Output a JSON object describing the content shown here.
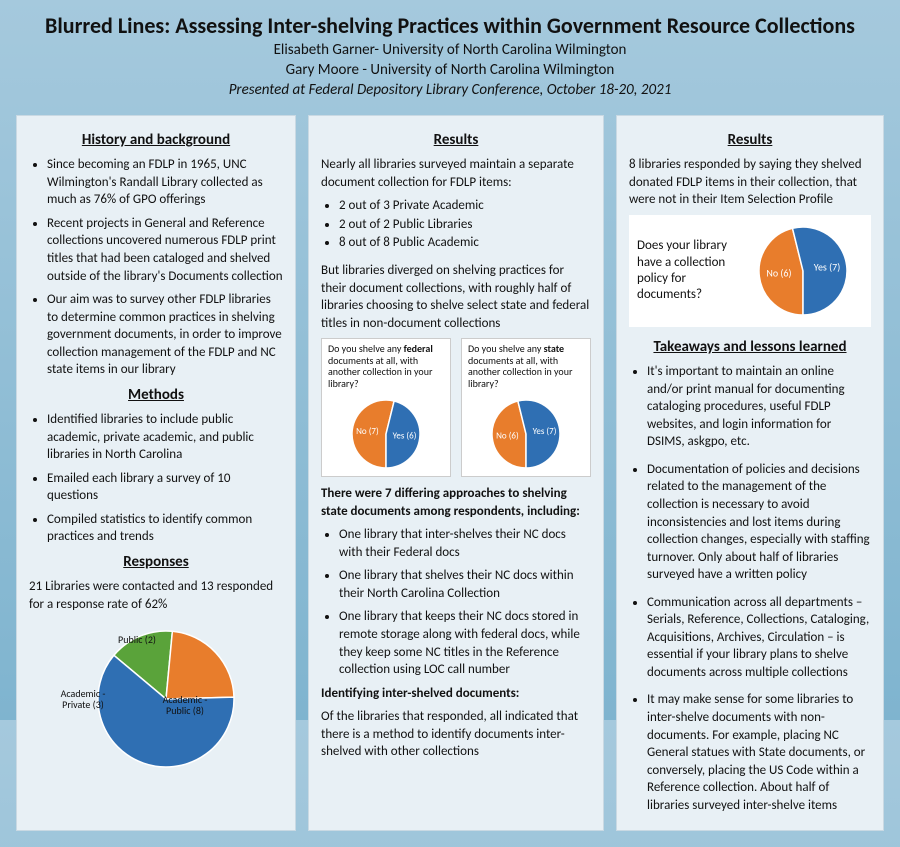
{
  "header": {
    "title": "Blurred Lines: Assessing Inter-shelving Practices within Government Resource Collections",
    "author1": "Elisabeth Garner- University of North Carolina Wilmington",
    "author2": "Gary Moore - University of North Carolina Wilmington",
    "venue": "Presented at Federal Depository Library Conference, October 18-20, 2021"
  },
  "colors": {
    "blue": "#2f6fb3",
    "orange": "#e87d2c",
    "green": "#5aa33a",
    "panel_bg": "#e8f0f5",
    "page_bg_top": "#a5c9dd"
  },
  "col1": {
    "history_h": "History and background",
    "history_items": [
      "Since becoming an FDLP in 1965, UNC Wilmington's Randall Library collected as much as 76% of GPO offerings",
      "Recent projects in General and Reference collections uncovered numerous FDLP print titles that had been cataloged and shelved outside of the library's Documents collection",
      "Our aim was to survey other FDLP libraries to determine common practices in shelving government documents, in order to improve collection management of the FDLP and NC state items in our library"
    ],
    "methods_h": "Methods",
    "methods_items": [
      "Identified libraries to include public academic, private academic, and public libraries in North Carolina",
      "Emailed each library a survey of 10 questions",
      "Compiled statistics to identify common practices and trends"
    ],
    "responses_h": "Responses",
    "responses_txt": "21 Libraries were contacted and 13 responded for a response rate of 62%",
    "responses_pie": {
      "type": "pie",
      "slices": [
        {
          "label": "Academic - Public (8)",
          "value": 8,
          "color": "#2f6fb3"
        },
        {
          "label": "Academic - Private (3)",
          "value": 3,
          "color": "#e87d2c"
        },
        {
          "label": "Public (2)",
          "value": 2,
          "color": "#5aa33a"
        }
      ],
      "label_fontsize": 10
    }
  },
  "col2": {
    "results_h": "Results",
    "intro": "Nearly all libraries surveyed maintain a separate document collection for FDLP items:",
    "intro_sub": [
      "2 out of 3 Private Academic",
      "2 out of 2 Public Libraries",
      "8 out of 8 Public Academic"
    ],
    "diverge": "But libraries diverged on shelving practices for their document collections, with roughly half of libraries choosing to shelve select state and federal titles in non-document collections",
    "mini1": {
      "q_html": "Do you shelve any <b>federal</b> documents at all, with another collection in your library?",
      "type": "pie",
      "slices": [
        {
          "label": "Yes (6)",
          "value": 6,
          "color": "#2f6fb3"
        },
        {
          "label": "No (7)",
          "value": 7,
          "color": "#e87d2c"
        }
      ],
      "label_fontsize": 9
    },
    "mini2": {
      "q_html": "Do you shelve any <b>state</b> documents at all, with another collection in your library?",
      "type": "pie",
      "slices": [
        {
          "label": "Yes (7)",
          "value": 7,
          "color": "#2f6fb3"
        },
        {
          "label": "No (6)",
          "value": 6,
          "color": "#e87d2c"
        }
      ],
      "label_fontsize": 9
    },
    "approaches_head": "There were 7 differing approaches to shelving state documents among respondents, including:",
    "approaches_items": [
      "One library that inter-shelves their NC docs with their Federal docs",
      "One library that shelves their NC docs within their North Carolina Collection",
      "One library that keeps their NC docs stored in remote storage along with federal docs, while they keep some NC titles in the Reference collection using LOC call number"
    ],
    "ident_head": "Identifying inter-shelved documents:",
    "ident_txt": "Of the libraries that responded, all indicated that there is a method to identify documents inter-shelved with other collections"
  },
  "col3": {
    "results_h": "Results",
    "top_txt": "8 libraries responded by saying they shelved donated FDLP items in their collection, that were not in their Item Selection Profile",
    "top_pie": {
      "q": "Does your library have a collection policy for documents?",
      "type": "pie",
      "slices": [
        {
          "label": "Yes (7)",
          "value": 7,
          "color": "#2f6fb3"
        },
        {
          "label": "No (6)",
          "value": 6,
          "color": "#e87d2c"
        }
      ],
      "label_fontsize": 10
    },
    "takeaways_h": "Takeaways and lessons learned",
    "takeaways": [
      "It's important to maintain an online and/or print manual for documenting cataloging procedures, useful FDLP websites, and login information for DSIMS, askgpo, etc.",
      "Documentation of policies and decisions related to the management of the collection is necessary to avoid inconsistencies and lost items during collection changes, especially with staffing turnover. Only about half of libraries surveyed have a written policy",
      "Communication across all departments – Serials, Reference, Collections, Cataloging, Acquisitions, Archives, Circulation – is essential if your library plans to shelve documents across multiple collections",
      "It may make sense for some libraries to inter-shelve documents with non-documents. For example, placing NC General statues with State documents, or conversely, placing the US Code within a Reference collection. About half of libraries surveyed inter-shelve items"
    ]
  }
}
